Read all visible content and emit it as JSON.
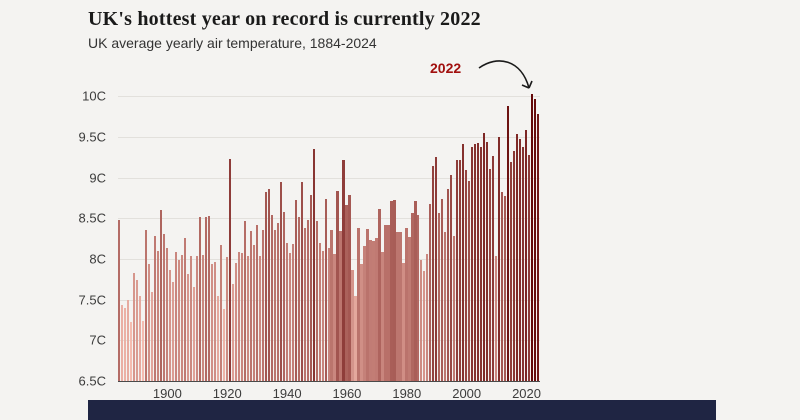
{
  "chart_data": {
    "type": "bar",
    "title": "UK's hottest year on record is currently 2022",
    "subtitle": "UK average yearly air temperature, 1884-2024",
    "year_start": 1884,
    "year_end": 2024,
    "unit": "C",
    "ylim": [
      6.5,
      10.1
    ],
    "grid": true,
    "legend": false,
    "color_domain": [
      7.2,
      10.05
    ],
    "bar_color_low": "#f6beb2",
    "bar_color_high": "#640808",
    "y_ticks": [
      {
        "value": 10,
        "label": "10C"
      },
      {
        "value": 9.5,
        "label": "9.5C"
      },
      {
        "value": 9,
        "label": "9C"
      },
      {
        "value": 8.5,
        "label": "8.5C"
      },
      {
        "value": 8,
        "label": "8C"
      },
      {
        "value": 7.5,
        "label": "7.5C"
      },
      {
        "value": 7,
        "label": "7C"
      },
      {
        "value": 6.5,
        "label": "6.5C"
      }
    ],
    "x_ticks": [
      {
        "year": 1900,
        "label": "1900"
      },
      {
        "year": 1920,
        "label": "1920"
      },
      {
        "year": 1940,
        "label": "1940"
      },
      {
        "year": 1960,
        "label": "1960"
      },
      {
        "year": 1980,
        "label": "1980"
      },
      {
        "year": 2000,
        "label": "2000"
      },
      {
        "year": 2020,
        "label": "2020"
      }
    ],
    "highlight": {
      "year": 2022,
      "value": 10.03,
      "label": "2022"
    },
    "values": [
      8.48,
      7.44,
      7.4,
      7.5,
      7.23,
      7.83,
      7.74,
      7.54,
      7.24,
      8.35,
      7.94,
      7.59,
      8.28,
      8.1,
      8.6,
      8.31,
      8.14,
      7.86,
      7.72,
      8.08,
      7.99,
      8.05,
      8.26,
      7.82,
      8.03,
      7.66,
      8.04,
      8.52,
      8.05,
      8.51,
      8.53,
      7.94,
      7.96,
      7.55,
      8.17,
      7.39,
      8.02,
      9.23,
      7.69,
      7.95,
      8.08,
      8.07,
      8.47,
      8.03,
      8.34,
      8.17,
      8.42,
      8.03,
      8.36,
      8.82,
      8.86,
      8.54,
      8.35,
      8.44,
      8.94,
      8.58,
      8.2,
      8.07,
      8.18,
      8.72,
      8.52,
      8.95,
      8.38,
      8.48,
      8.78,
      9.35,
      8.47,
      8.2,
      8.1,
      8.74,
      8.13,
      8.35,
      8.06,
      8.84,
      8.34,
      9.22,
      8.66,
      8.79,
      7.86,
      7.55,
      8.38,
      7.94,
      8.16,
      8.37,
      8.23,
      8.22,
      8.26,
      8.61,
      8.09,
      8.42,
      8.42,
      8.71,
      8.72,
      8.33,
      8.33,
      7.95,
      8.38,
      8.27,
      8.57,
      8.71,
      8.54,
      7.99,
      7.85,
      8.06,
      8.68,
      9.14,
      9.25,
      8.57,
      8.74,
      8.33,
      8.86,
      9.03,
      8.28,
      9.22,
      9.21,
      9.41,
      9.09,
      8.96,
      9.37,
      9.41,
      9.42,
      9.38,
      9.55,
      9.44,
      9.1,
      9.27,
      8.04,
      9.5,
      8.82,
      8.77,
      9.88,
      9.19,
      9.32,
      9.53,
      9.47,
      9.38,
      9.58,
      9.28,
      10.03,
      9.97,
      9.78
    ]
  }
}
